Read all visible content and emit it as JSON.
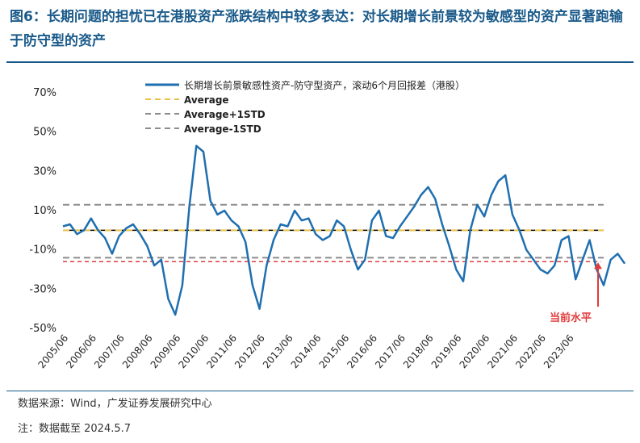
{
  "title": "图6：长期问题的担忧已在港股资产涨跌结构中较多表达：对长期增长前景较为敏感型的资产显著跑输于防守型的资产",
  "source": "数据来源：Wind，广发证券发展研究中心",
  "note": "注：数据截至 2024.5.7",
  "annotation": "当前水平",
  "colors": {
    "series": "#1f6fb0",
    "average": "#e8c24a",
    "std": "#8c8c8c",
    "zero": "#000000",
    "current": "#e23b3b",
    "title": "#1a5a8a"
  },
  "chart_data": {
    "type": "line",
    "ylim": [
      -0.5,
      0.7
    ],
    "yticks": [
      "70%",
      "50%",
      "30%",
      "10%",
      "-10%",
      "-30%",
      "-50%"
    ],
    "xticks": [
      "2005/06",
      "2006/06",
      "2007/06",
      "2008/06",
      "2009/06",
      "2010/06",
      "2011/06",
      "2012/06",
      "2013/06",
      "2014/06",
      "2015/06",
      "2016/06",
      "2017/06",
      "2018/06",
      "2019/06",
      "2020/06",
      "2021/06",
      "2022/06",
      "2023/06"
    ],
    "legend": [
      "长期增长前景敏感性资产-防守型资产，滚动6个月回报差（港股）",
      "Average",
      "Average+1STD",
      "Average-1STD"
    ],
    "average": 0.0,
    "average_plus_1std": 0.13,
    "average_minus_1std": -0.14,
    "current_level": -0.16,
    "series": [
      {
        "name": "长期增长前景敏感性资产-防守型资产，滚动6个月回报差（港股）",
        "x_start": 2005.25,
        "x_step": 0.25,
        "values": [
          0.02,
          0.03,
          -0.02,
          0.0,
          0.06,
          0.0,
          -0.04,
          -0.12,
          -0.03,
          0.01,
          0.03,
          -0.02,
          -0.08,
          -0.18,
          -0.15,
          -0.35,
          -0.43,
          -0.28,
          0.12,
          0.43,
          0.4,
          0.15,
          0.08,
          0.1,
          0.05,
          0.02,
          -0.06,
          -0.28,
          -0.4,
          -0.18,
          -0.05,
          0.03,
          0.02,
          0.1,
          0.05,
          0.06,
          -0.02,
          -0.05,
          -0.03,
          0.05,
          0.02,
          -0.1,
          -0.2,
          -0.15,
          0.05,
          0.1,
          -0.03,
          -0.04,
          0.02,
          0.07,
          0.12,
          0.18,
          0.22,
          0.16,
          0.03,
          -0.08,
          -0.2,
          -0.26,
          0.0,
          0.13,
          0.07,
          0.18,
          0.25,
          0.28,
          0.08,
          0.0,
          -0.1,
          -0.15,
          -0.2,
          -0.22,
          -0.18,
          -0.05,
          -0.03,
          -0.25,
          -0.15,
          -0.05,
          -0.2,
          -0.28,
          -0.15,
          -0.12,
          -0.17
        ]
      }
    ]
  }
}
